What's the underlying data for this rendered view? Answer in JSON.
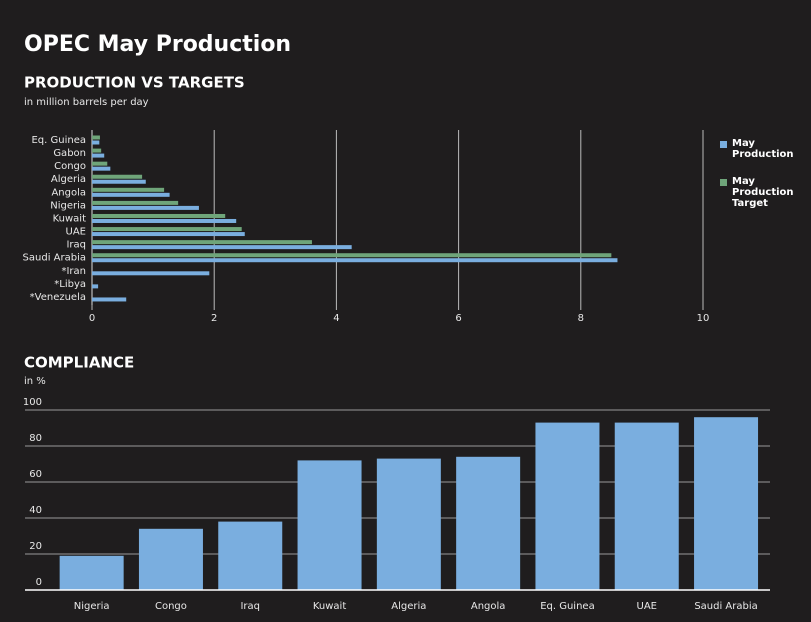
{
  "title": "OPEC May Production",
  "chart_data": [
    {
      "type": "bar",
      "orientation": "horizontal",
      "title": "PRODUCTION VS TARGETS",
      "subtitle": "in million barrels per day",
      "categories": [
        "Eq. Guinea",
        "Gabon",
        "Congo",
        "Algeria",
        "Angola",
        "Nigeria",
        "Kuwait",
        "UAE",
        "Iraq",
        "Saudi Arabia",
        "*Iran",
        "*Libya",
        "*Venezuela"
      ],
      "series": [
        {
          "name": "May Production",
          "color": "#7aaedf",
          "values": [
            0.12,
            0.2,
            0.3,
            0.88,
            1.27,
            1.75,
            2.36,
            2.5,
            4.25,
            8.6,
            1.92,
            0.1,
            0.56
          ]
        },
        {
          "name": "May Production Target",
          "color": "#6fa57a",
          "values": [
            0.13,
            0.15,
            0.25,
            0.82,
            1.18,
            1.41,
            2.18,
            2.45,
            3.6,
            8.5,
            null,
            null,
            null
          ]
        }
      ],
      "xlim": [
        0,
        10
      ],
      "xticks": [
        0,
        2,
        4,
        6,
        8,
        10
      ],
      "grid": true,
      "legend": "right"
    },
    {
      "type": "bar",
      "title": "COMPLIANCE",
      "subtitle": "in %",
      "categories": [
        "Nigeria",
        "Congo",
        "Iraq",
        "Kuwait",
        "Algeria",
        "Angola",
        "Eq. Guinea",
        "UAE",
        "Saudi Arabia"
      ],
      "values": [
        19,
        34,
        38,
        72,
        73,
        74,
        93,
        93,
        96
      ],
      "color": "#7aaedf",
      "ylim": [
        0,
        100
      ],
      "yticks": [
        0,
        20,
        40,
        60,
        80,
        100
      ],
      "grid": true
    }
  ]
}
